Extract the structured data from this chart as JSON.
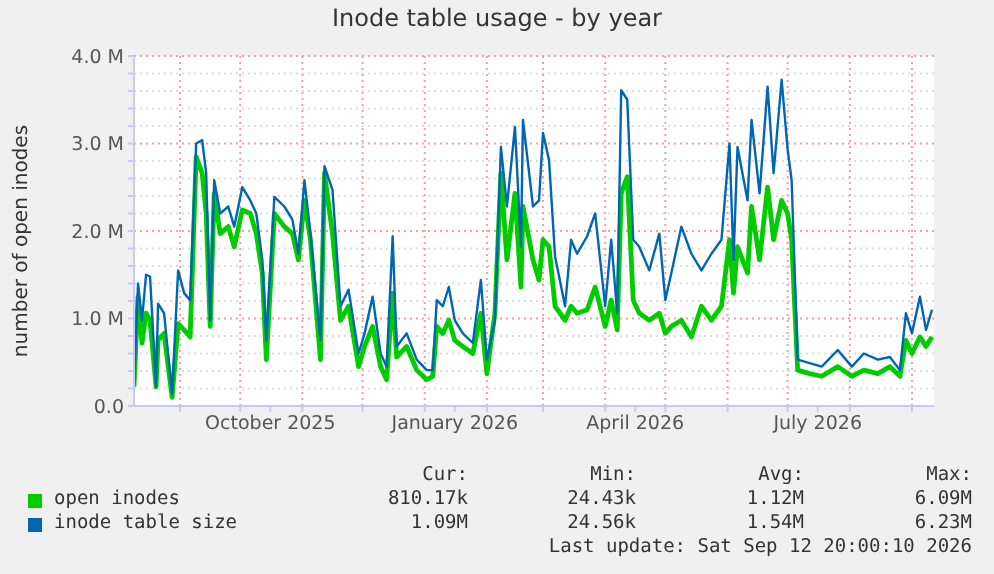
{
  "chart_data": {
    "type": "line",
    "title": "Inode table usage - by year",
    "ylabel": "number of open inodes",
    "x": [
      "2025-08-09",
      "2025-08-11",
      "2025-08-13",
      "2025-08-15",
      "2025-08-17",
      "2025-08-20",
      "2025-08-21",
      "2025-08-24",
      "2025-08-28",
      "2025-08-31",
      "2025-09-03",
      "2025-09-06",
      "2025-09-09",
      "2025-09-12",
      "2025-09-14",
      "2025-09-16",
      "2025-09-18",
      "2025-09-21",
      "2025-09-25",
      "2025-09-28",
      "2025-10-02",
      "2025-10-06",
      "2025-10-09",
      "2025-10-12",
      "2025-10-14",
      "2025-10-18",
      "2025-10-23",
      "2025-10-27",
      "2025-10-30",
      "2025-11-02",
      "2025-11-05",
      "2025-11-10",
      "2025-11-12",
      "2025-11-16",
      "2025-11-20",
      "2025-11-24",
      "2025-11-29",
      "2025-12-02",
      "2025-12-06",
      "2025-12-10",
      "2025-12-13",
      "2025-12-16",
      "2025-12-18",
      "2025-12-23",
      "2025-12-28",
      "2026-01-02",
      "2026-01-05",
      "2026-01-07",
      "2026-01-10",
      "2026-01-13",
      "2026-01-16",
      "2026-01-20",
      "2026-01-25",
      "2026-01-29",
      "2026-02-01",
      "2026-02-05",
      "2026-02-08",
      "2026-02-11",
      "2026-02-15",
      "2026-02-18",
      "2026-02-19",
      "2026-02-24",
      "2026-02-27",
      "2026-03-01",
      "2026-03-04",
      "2026-03-07",
      "2026-03-12",
      "2026-03-15",
      "2026-03-18",
      "2026-03-23",
      "2026-03-27",
      "2026-04-01",
      "2026-04-04",
      "2026-04-07",
      "2026-04-09",
      "2026-04-12",
      "2026-04-15",
      "2026-04-18",
      "2026-04-23",
      "2026-04-28",
      "2026-05-01",
      "2026-05-04",
      "2026-05-09",
      "2026-05-14",
      "2026-05-19",
      "2026-05-24",
      "2026-05-29",
      "2026-06-02",
      "2026-06-04",
      "2026-06-06",
      "2026-06-11",
      "2026-06-13",
      "2026-06-17",
      "2026-06-21",
      "2026-06-24",
      "2026-06-28",
      "2026-07-01",
      "2026-07-03",
      "2026-07-06",
      "2026-07-12",
      "2026-07-18",
      "2026-07-26",
      "2026-08-02",
      "2026-08-08",
      "2026-08-15",
      "2026-08-21",
      "2026-08-26",
      "2026-08-29",
      "2026-09-01",
      "2026-09-05",
      "2026-09-08",
      "2026-09-11"
    ],
    "series": [
      {
        "name": "open inodes",
        "color": "#00cc00",
        "values": [
          0.22,
          1.25,
          0.72,
          1.06,
          0.98,
          0.22,
          0.75,
          0.83,
          0.1,
          0.94,
          0.87,
          0.79,
          2.85,
          2.66,
          2.2,
          0.91,
          2.43,
          1.97,
          2.05,
          1.82,
          2.24,
          2.2,
          1.97,
          1.52,
          0.53,
          2.2,
          2.05,
          1.97,
          1.67,
          2.35,
          1.9,
          0.53,
          2.66,
          1.97,
          0.98,
          1.14,
          0.45,
          0.68,
          0.91,
          0.45,
          0.3,
          1.29,
          0.56,
          0.68,
          0.41,
          0.3,
          0.34,
          0.91,
          0.83,
          0.98,
          0.75,
          0.68,
          0.6,
          1.06,
          0.37,
          1.06,
          2.66,
          1.67,
          2.43,
          1.36,
          2.28,
          1.67,
          1.44,
          1.9,
          1.82,
          1.14,
          0.98,
          1.14,
          1.06,
          1.1,
          1.36,
          0.91,
          1.21,
          0.87,
          2.43,
          2.62,
          1.21,
          1.06,
          0.98,
          1.06,
          0.83,
          0.91,
          0.98,
          0.79,
          1.14,
          0.98,
          1.14,
          1.9,
          1.29,
          1.82,
          1.52,
          2.28,
          1.67,
          2.5,
          1.9,
          2.35,
          2.2,
          1.9,
          0.41,
          0.37,
          0.34,
          0.45,
          0.34,
          0.41,
          0.37,
          0.45,
          0.34,
          0.75,
          0.6,
          0.79,
          0.68,
          0.79
        ]
      },
      {
        "name": "inode table size",
        "color": "#0066b3",
        "values": [
          0.22,
          1.4,
          0.98,
          1.5,
          1.48,
          0.22,
          1.17,
          1.06,
          0.14,
          1.55,
          1.29,
          1.21,
          3.0,
          3.04,
          2.66,
          0.98,
          2.58,
          2.2,
          2.28,
          2.05,
          2.5,
          2.35,
          2.2,
          1.67,
          0.75,
          2.39,
          2.28,
          2.13,
          1.74,
          2.58,
          1.97,
          0.75,
          2.74,
          2.47,
          1.14,
          1.33,
          0.6,
          0.83,
          1.25,
          0.6,
          0.45,
          1.94,
          0.68,
          0.83,
          0.53,
          0.41,
          0.41,
          1.21,
          1.14,
          1.36,
          0.98,
          0.83,
          0.72,
          1.44,
          0.53,
          0.98,
          2.96,
          2.28,
          3.19,
          1.82,
          3.27,
          2.28,
          2.35,
          3.12,
          2.81,
          1.71,
          1.14,
          1.9,
          1.74,
          1.94,
          2.2,
          1.14,
          1.9,
          1.06,
          3.61,
          3.5,
          1.9,
          1.82,
          1.55,
          1.97,
          1.21,
          1.52,
          2.05,
          1.74,
          1.55,
          1.74,
          1.9,
          3.0,
          1.67,
          2.96,
          2.35,
          3.27,
          2.43,
          3.65,
          2.66,
          3.73,
          2.93,
          2.58,
          0.53,
          0.49,
          0.45,
          0.64,
          0.45,
          0.6,
          0.53,
          0.56,
          0.41,
          1.06,
          0.83,
          1.25,
          0.87,
          1.1
        ]
      }
    ],
    "xlim": [
      "2025-08-09",
      "2026-09-12"
    ],
    "xticks": [
      {
        "value": "2025-09-01",
        "label": null
      },
      {
        "value": "2025-10-01",
        "label": null
      },
      {
        "value": "2025-10-16",
        "label": "October 2025"
      },
      {
        "value": "2025-11-01",
        "label": null
      },
      {
        "value": "2025-12-01",
        "label": null
      },
      {
        "value": "2026-01-01",
        "label": null
      },
      {
        "value": "2026-01-16",
        "label": "January 2026"
      },
      {
        "value": "2026-02-01",
        "label": null
      },
      {
        "value": "2026-03-01",
        "label": null
      },
      {
        "value": "2026-04-01",
        "label": null
      },
      {
        "value": "2026-04-16",
        "label": "April 2026"
      },
      {
        "value": "2026-05-01",
        "label": null
      },
      {
        "value": "2026-06-01",
        "label": null
      },
      {
        "value": "2026-07-01",
        "label": null
      },
      {
        "value": "2026-07-16",
        "label": "July 2026"
      },
      {
        "value": "2026-08-01",
        "label": null
      },
      {
        "value": "2026-09-01",
        "label": null
      }
    ],
    "ylim": [
      0,
      4
    ],
    "yticks": [
      {
        "value": 0,
        "label": "0.0"
      },
      {
        "value": 0.2,
        "label": null
      },
      {
        "value": 0.4,
        "label": null
      },
      {
        "value": 0.6,
        "label": null
      },
      {
        "value": 0.8,
        "label": null
      },
      {
        "value": 1,
        "label": "1.0 M"
      },
      {
        "value": 1.2,
        "label": null
      },
      {
        "value": 1.4,
        "label": null
      },
      {
        "value": 1.6,
        "label": null
      },
      {
        "value": 1.8,
        "label": null
      },
      {
        "value": 2,
        "label": "2.0 M"
      },
      {
        "value": 2.2,
        "label": null
      },
      {
        "value": 2.4,
        "label": null
      },
      {
        "value": 2.6,
        "label": null
      },
      {
        "value": 2.8,
        "label": null
      },
      {
        "value": 3,
        "label": "3.0 M"
      },
      {
        "value": 3.2,
        "label": null
      },
      {
        "value": 3.4,
        "label": null
      },
      {
        "value": 3.6,
        "label": null
      },
      {
        "value": 3.8,
        "label": null
      },
      {
        "value": 4,
        "label": "4.0 M"
      }
    ],
    "grid": true,
    "legend": "bottom",
    "annotations": [
      "Cur:",
      "Min:",
      "Avg:",
      "Max:",
      "810.17k",
      "24.43k",
      "1.12M",
      "6.09M",
      "1.09M",
      "24.56k",
      "1.54M",
      "6.23M",
      "Last update: Sat Sep 12 20:00:10 2026"
    ]
  }
}
